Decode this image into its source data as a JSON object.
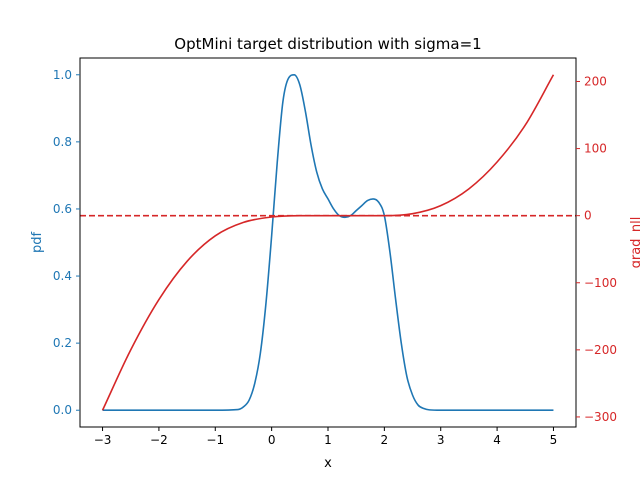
{
  "chart_data": {
    "type": "line",
    "title": "OptMini target distribution with sigma=1",
    "xlabel": "x",
    "ylabel_left": "pdf",
    "ylabel_right": "grad_nll",
    "xlim": [
      -3.4,
      5.4
    ],
    "ylim_left": [
      -0.05,
      1.05
    ],
    "ylim_right": [
      -315,
      235
    ],
    "x_ticks": [
      -3,
      -2,
      -1,
      0,
      1,
      2,
      3,
      4,
      5
    ],
    "x_tick_labels": [
      "−3",
      "−2",
      "−1",
      "0",
      "1",
      "2",
      "3",
      "4",
      "5"
    ],
    "y_ticks_left": [
      0.0,
      0.2,
      0.4,
      0.6,
      0.8,
      1.0
    ],
    "y_tick_labels_left": [
      "0.0",
      "0.2",
      "0.4",
      "0.6",
      "0.8",
      "1.0"
    ],
    "y_ticks_right": [
      -300,
      -200,
      -100,
      0,
      100,
      200
    ],
    "y_tick_labels_right": [
      "−300",
      "−200",
      "−100",
      "0",
      "100",
      "200"
    ],
    "grid": false,
    "colors": {
      "pdf": "#1f77b4",
      "grad_nll": "#d62728",
      "axes": "#000000"
    },
    "series": [
      {
        "axis": "left",
        "color": "#1f77b4",
        "style": "solid",
        "x": [
          -3.0,
          -1.0,
          -0.6,
          -0.5,
          -0.4,
          -0.3,
          -0.2,
          -0.1,
          0.0,
          0.1,
          0.2,
          0.3,
          0.4,
          0.5,
          0.6,
          0.7,
          0.8,
          0.9,
          1.0,
          1.1,
          1.2,
          1.3,
          1.4,
          1.5,
          1.6,
          1.7,
          1.8,
          1.9,
          2.0,
          2.1,
          2.2,
          2.3,
          2.4,
          2.5,
          2.6,
          2.7,
          2.8,
          3.0,
          5.0
        ],
        "y": [
          0.0,
          0.0,
          0.002,
          0.01,
          0.03,
          0.08,
          0.17,
          0.32,
          0.52,
          0.74,
          0.92,
          0.99,
          1.0,
          0.97,
          0.89,
          0.79,
          0.71,
          0.66,
          0.63,
          0.6,
          0.58,
          0.575,
          0.58,
          0.595,
          0.61,
          0.625,
          0.63,
          0.62,
          0.58,
          0.47,
          0.33,
          0.2,
          0.1,
          0.045,
          0.015,
          0.005,
          0.001,
          0.0,
          0.0
        ]
      },
      {
        "axis": "right",
        "color": "#d62728",
        "style": "solid",
        "x": [
          -3.0,
          -2.5,
          -2.0,
          -1.5,
          -1.0,
          -0.5,
          0.0,
          0.5,
          1.0,
          1.5,
          2.0,
          2.5,
          3.0,
          3.5,
          4.0,
          4.5,
          5.0
        ],
        "y": [
          -290,
          -200,
          -125,
          -68,
          -30,
          -10,
          -2,
          0,
          0,
          0,
          0,
          3,
          15,
          40,
          80,
          135,
          210
        ]
      },
      {
        "axis": "right",
        "color": "#d62728",
        "style": "dashed",
        "x": [
          -3.4,
          5.4
        ],
        "y": [
          0,
          0
        ]
      }
    ]
  }
}
